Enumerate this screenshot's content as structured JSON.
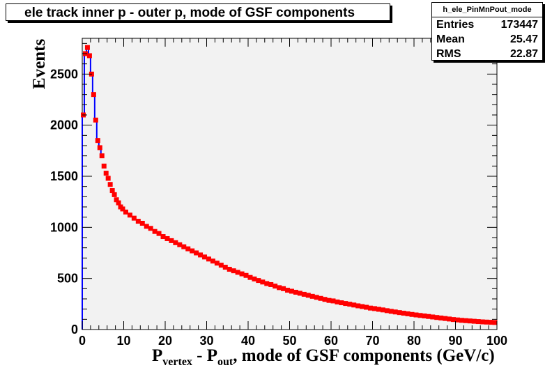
{
  "stats": {
    "name": "h_ele_PinMnPout_mode",
    "rows": [
      {
        "label": "Entries",
        "value": "173447"
      },
      {
        "label": "Mean",
        "value": "25.47"
      },
      {
        "label": "RMS",
        "value": "22.87"
      }
    ]
  },
  "colors": {
    "frame_bg": "#f2f2f2",
    "histogram": "#0000ff",
    "markers": "#ff0000"
  },
  "chart_data": {
    "type": "scatter",
    "title": "ele track inner p - outer p, mode of GSF components",
    "xlabel_main": "P",
    "xlabel_sub1": "vertex",
    "xlabel_mid": " - P",
    "xlabel_sub2": "out",
    "xlabel_rest": ", mode of GSF components (GeV/c)",
    "ylabel": "Events",
    "xlim": [
      0,
      100
    ],
    "ylim": [
      0,
      2850
    ],
    "xticks": [
      "0",
      "10",
      "20",
      "30",
      "40",
      "50",
      "60",
      "70",
      "80",
      "90",
      "100"
    ],
    "yticks": [
      {
        "value": 0,
        "label": "0"
      },
      {
        "value": 500,
        "label": "500"
      },
      {
        "value": 1000,
        "label": "1000"
      },
      {
        "value": 1500,
        "label": "1500"
      },
      {
        "value": 2000,
        "label": "2000"
      },
      {
        "value": 2500,
        "label": "2500"
      }
    ],
    "grid": false,
    "bin_width": 0.5,
    "series": [
      {
        "x": [
          0.25,
          0.75,
          1.25,
          1.75,
          2.25,
          2.75,
          3.25,
          3.75,
          4.25,
          4.75,
          5.25,
          5.75,
          6.25,
          6.75,
          7.25,
          7.75,
          8.25,
          8.75,
          9.25,
          9.75,
          10.5,
          11.5,
          12.5,
          13.5,
          14.5,
          15.5,
          16.5,
          17.5,
          18.5,
          19.5,
          20.5,
          21.5,
          22.5,
          23.5,
          24.5,
          25.5,
          26.5,
          27.5,
          28.5,
          29.5,
          30.5,
          31.5,
          32.5,
          33.5,
          34.5,
          35.5,
          36.5,
          37.5,
          38.5,
          39.5,
          40.5,
          41.5,
          42.5,
          43.5,
          44.5,
          45.5,
          46.5,
          47.5,
          48.5,
          49.5,
          50.5,
          51.5,
          52.5,
          53.5,
          54.5,
          55.5,
          56.5,
          57.5,
          58.5,
          59.5,
          60.5,
          61.5,
          62.5,
          63.5,
          64.5,
          65.5,
          66.5,
          67.5,
          68.5,
          69.5,
          70.5,
          71.5,
          72.5,
          73.5,
          74.5,
          75.5,
          76.5,
          77.5,
          78.5,
          79.5,
          80.5,
          81.5,
          82.5,
          83.5,
          84.5,
          85.5,
          86.5,
          87.5,
          88.5,
          89.5,
          90.5,
          91.5,
          92.5,
          93.5,
          94.5,
          95.5,
          96.5,
          97.5,
          98.5,
          99.5
        ],
        "y": [
          2100,
          2700,
          2760,
          2680,
          2500,
          2300,
          2050,
          1850,
          1780,
          1700,
          1600,
          1530,
          1480,
          1420,
          1360,
          1320,
          1270,
          1240,
          1200,
          1180,
          1150,
          1120,
          1090,
          1060,
          1040,
          1010,
          990,
          960,
          940,
          910,
          890,
          870,
          850,
          830,
          810,
          790,
          770,
          750,
          730,
          710,
          690,
          670,
          650,
          630,
          610,
          590,
          575,
          560,
          545,
          530,
          510,
          495,
          480,
          465,
          450,
          440,
          425,
          410,
          400,
          385,
          375,
          365,
          355,
          345,
          335,
          325,
          315,
          305,
          295,
          285,
          280,
          270,
          262,
          255,
          248,
          240,
          232,
          225,
          218,
          210,
          205,
          198,
          192,
          185,
          178,
          172,
          166,
          160,
          154,
          148,
          143,
          138,
          133,
          128,
          123,
          118,
          113,
          108,
          103,
          98,
          94,
          90,
          87,
          84,
          81,
          78,
          75,
          73,
          71,
          69
        ]
      }
    ]
  }
}
